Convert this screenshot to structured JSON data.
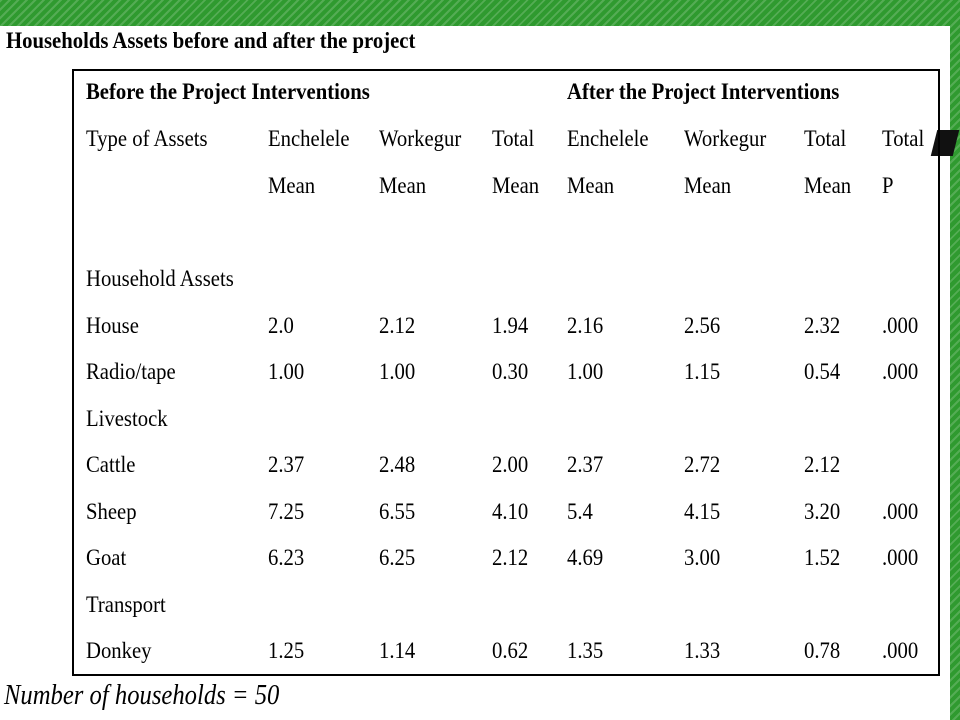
{
  "title": "Households Assets before and after the project",
  "table": {
    "group_headers": {
      "before": "Before the Project Interventions",
      "after": "After the Project Interventions"
    },
    "column_headers_row1": [
      "Type of Assets",
      "Enchelele",
      "Workegur",
      "Total",
      "Enchelele",
      "Workegur",
      "Total",
      "Total"
    ],
    "column_headers_row2": [
      "",
      "Mean",
      "Mean",
      "Mean",
      "Mean",
      "Mean",
      "Mean",
      "P"
    ],
    "rows": [
      [
        "Household Assets",
        "",
        "",
        "",
        "",
        "",
        "",
        ""
      ],
      [
        "House",
        "2.0",
        "2.12",
        "1.94",
        "2.16",
        "2.56",
        "2.32",
        ".000"
      ],
      [
        "Radio/tape",
        "1.00",
        "1.00",
        "0.30",
        "1.00",
        "1.15",
        "0.54",
        ".000"
      ],
      [
        "Livestock",
        "",
        "",
        "",
        "",
        "",
        "",
        ""
      ],
      [
        "Cattle",
        "2.37",
        "2.48",
        "2.00",
        "2.37",
        "2.72",
        "2.12",
        ""
      ],
      [
        "Sheep",
        "7.25",
        "6.55",
        "4.10",
        "5.4",
        "4.15",
        "3.20",
        ".000"
      ],
      [
        "Goat",
        "6.23",
        "6.25",
        "2.12",
        "4.69",
        "3.00",
        "1.52",
        ".000"
      ],
      [
        "Transport",
        "",
        "",
        "",
        "",
        "",
        "",
        ""
      ],
      [
        "Donkey",
        "1.25",
        "1.14",
        "0.62",
        "1.35",
        "1.33",
        "0.78",
        ".000"
      ]
    ]
  },
  "footnote": "Number of households = 50",
  "colors": {
    "band": "#2f9a2f",
    "text": "#000000",
    "background": "#ffffff"
  }
}
